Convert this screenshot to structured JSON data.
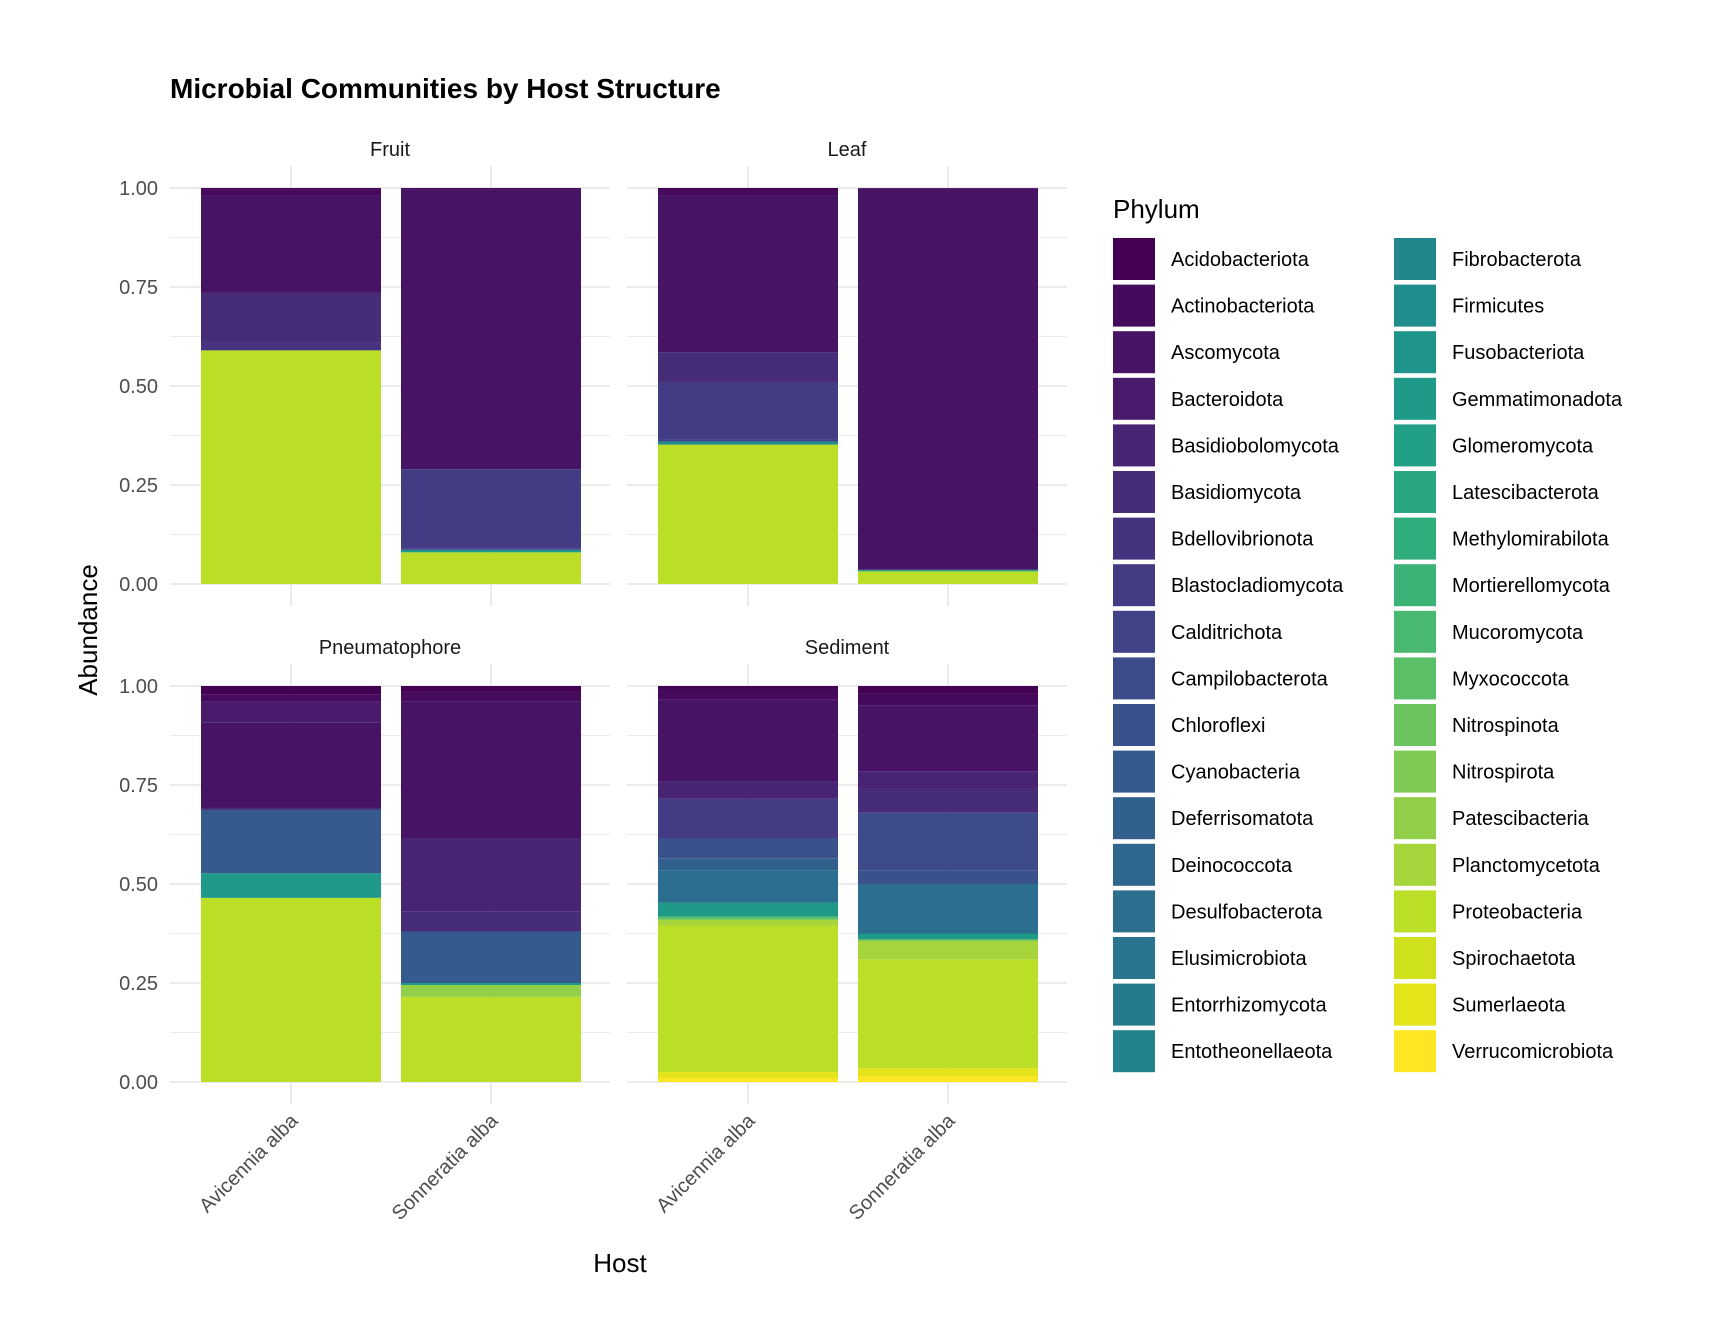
{
  "chart_data": {
    "type": "bar",
    "stacked": true,
    "title": "Microbial Communities by Host Structure",
    "xlabel": "Host",
    "ylabel": "Abundance",
    "ylim": [
      0,
      1
    ],
    "yticks": [
      "0.00",
      "0.25",
      "0.50",
      "0.75",
      "1.00"
    ],
    "categories": [
      "Avicennia alba",
      "Sonneratia alba"
    ],
    "legend": {
      "title": "Phylum",
      "position": "right",
      "items": [
        {
          "name": "Acidobacteriota",
          "color": "#440154"
        },
        {
          "name": "Actinobacteriota",
          "color": "#450a5c"
        },
        {
          "name": "Ascomycota",
          "color": "#471465"
        },
        {
          "name": "Bacteroidota",
          "color": "#481b6d"
        },
        {
          "name": "Basidiobolomycota",
          "color": "#482475"
        },
        {
          "name": "Basidiomycota",
          "color": "#472c7a"
        },
        {
          "name": "Bdellovibrionota",
          "color": "#45337f"
        },
        {
          "name": "Blastocladiomycota",
          "color": "#433b84"
        },
        {
          "name": "Calditrichota",
          "color": "#404387"
        },
        {
          "name": "Campilobacterota",
          "color": "#3d4b8a"
        },
        {
          "name": "Chloroflexi",
          "color": "#39528c"
        },
        {
          "name": "Cyanobacteria",
          "color": "#355a8d"
        },
        {
          "name": "Deferrisomatota",
          "color": "#31608d"
        },
        {
          "name": "Deinococcota",
          "color": "#2e678e"
        },
        {
          "name": "Desulfobacterota",
          "color": "#2b6e8e"
        },
        {
          "name": "Elusimicrobiota",
          "color": "#29748e"
        },
        {
          "name": "Entorrhizomycota",
          "color": "#267a8e"
        },
        {
          "name": "Entotheonellaeota",
          "color": "#24818e"
        },
        {
          "name": "Fibrobacterota",
          "color": "#21878d"
        },
        {
          "name": "Firmicutes",
          "color": "#1f8d8c"
        },
        {
          "name": "Fusobacteriota",
          "color": "#1e948a"
        },
        {
          "name": "Gemmatimonadota",
          "color": "#1f9a88"
        },
        {
          "name": "Glomeromycota",
          "color": "#22a085"
        },
        {
          "name": "Latescibacterota",
          "color": "#28a781"
        },
        {
          "name": "Methylomirabilota",
          "color": "#30ad7c"
        },
        {
          "name": "Mortierellomycota",
          "color": "#3cb376"
        },
        {
          "name": "Mucoromycota",
          "color": "#4ab970"
        },
        {
          "name": "Myxococcota",
          "color": "#5abf67"
        },
        {
          "name": "Nitrospinota",
          "color": "#6bc45e"
        },
        {
          "name": "Nitrospirota",
          "color": "#7eca54"
        },
        {
          "name": "Patescibacteria",
          "color": "#92cf48"
        },
        {
          "name": "Planctomycetota",
          "color": "#a6d43b"
        },
        {
          "name": "Proteobacteria",
          "color": "#bbdf27"
        },
        {
          "name": "Spirochaetota",
          "color": "#cfe11c"
        },
        {
          "name": "Sumerlaeota",
          "color": "#e4e41a"
        },
        {
          "name": "Verrucomicrobiota",
          "color": "#fde725"
        }
      ]
    },
    "panels": [
      {
        "facet": "Fruit",
        "bars": [
          {
            "host": "Avicennia alba",
            "segments": [
              {
                "phylum": "Proteobacteria",
                "value": 0.59
              },
              {
                "phylum": "Bdellovibrionota",
                "value": 0.02
              },
              {
                "phylum": "Basidiomycota",
                "value": 0.125
              },
              {
                "phylum": "Ascomycota",
                "value": 0.245
              },
              {
                "phylum": "Actinobacteriota",
                "value": 0.016
              },
              {
                "phylum": "Acidobacteriota",
                "value": 0.004
              }
            ]
          },
          {
            "host": "Sonneratia alba",
            "segments": [
              {
                "phylum": "Proteobacteria",
                "value": 0.08
              },
              {
                "phylum": "Gemmatimonadota",
                "value": 0.006
              },
              {
                "phylum": "Calditrichota",
                "value": 0.004
              },
              {
                "phylum": "Blastocladiomycota",
                "value": 0.2
              },
              {
                "phylum": "Ascomycota",
                "value": 0.706
              },
              {
                "phylum": "Actinobacteriota",
                "value": 0.004
              }
            ]
          }
        ]
      },
      {
        "facet": "Leaf",
        "bars": [
          {
            "host": "Avicennia alba",
            "segments": [
              {
                "phylum": "Proteobacteria",
                "value": 0.352
              },
              {
                "phylum": "Firmicutes",
                "value": 0.008
              },
              {
                "phylum": "Calditrichota",
                "value": 0.006
              },
              {
                "phylum": "Blastocladiomycota",
                "value": 0.144
              },
              {
                "phylum": "Basidiomycota",
                "value": 0.075
              },
              {
                "phylum": "Ascomycota",
                "value": 0.395
              },
              {
                "phylum": "Actinobacteriota",
                "value": 0.015
              },
              {
                "phylum": "Acidobacteriota",
                "value": 0.005
              }
            ]
          },
          {
            "host": "Sonneratia alba",
            "segments": [
              {
                "phylum": "Proteobacteria",
                "value": 0.032
              },
              {
                "phylum": "Gemmatimonadota",
                "value": 0.004
              },
              {
                "phylum": "Ascomycota",
                "value": 0.962
              },
              {
                "phylum": "Actinobacteriota",
                "value": 0.002
              }
            ]
          }
        ]
      },
      {
        "facet": "Pneumatophore",
        "bars": [
          {
            "host": "Avicennia alba",
            "segments": [
              {
                "phylum": "Proteobacteria",
                "value": 0.465
              },
              {
                "phylum": "Gemmatimonadota",
                "value": 0.062
              },
              {
                "phylum": "Cyanobacteria",
                "value": 0.16
              },
              {
                "phylum": "Basidiomycota",
                "value": 0.005
              },
              {
                "phylum": "Ascomycota",
                "value": 0.215
              },
              {
                "phylum": "Bacteroidota",
                "value": 0.053
              },
              {
                "phylum": "Actinobacteriota",
                "value": 0.018
              },
              {
                "phylum": "Acidobacteriota",
                "value": 0.022
              }
            ]
          },
          {
            "host": "Sonneratia alba",
            "segments": [
              {
                "phylum": "Proteobacteria",
                "value": 0.215
              },
              {
                "phylum": "Patescibacteria",
                "value": 0.03
              },
              {
                "phylum": "Gemmatimonadota",
                "value": 0.005
              },
              {
                "phylum": "Cyanobacteria",
                "value": 0.13
              },
              {
                "phylum": "Basidiomycota",
                "value": 0.05
              },
              {
                "phylum": "Basidiobolomycota",
                "value": 0.185
              },
              {
                "phylum": "Ascomycota",
                "value": 0.345
              },
              {
                "phylum": "Actinobacteriota",
                "value": 0.025
              },
              {
                "phylum": "Acidobacteriota",
                "value": 0.015
              }
            ]
          }
        ]
      },
      {
        "facet": "Sediment",
        "bars": [
          {
            "host": "Avicennia alba",
            "segments": [
              {
                "phylum": "Verrucomicrobiota",
                "value": 0.01
              },
              {
                "phylum": "Sumerlaeota",
                "value": 0.015
              },
              {
                "phylum": "Proteobacteria",
                "value": 0.37
              },
              {
                "phylum": "Planctomycetota",
                "value": 0.015
              },
              {
                "phylum": "Myxococcota",
                "value": 0.008
              },
              {
                "phylum": "Gemmatimonadota",
                "value": 0.035
              },
              {
                "phylum": "Desulfobacterota",
                "value": 0.082
              },
              {
                "phylum": "Deferrisomatota",
                "value": 0.03
              },
              {
                "phylum": "Chloroflexi",
                "value": 0.05
              },
              {
                "phylum": "Blastocladiomycota",
                "value": 0.1
              },
              {
                "phylum": "Basidiobolomycota",
                "value": 0.045
              },
              {
                "phylum": "Ascomycota",
                "value": 0.205
              },
              {
                "phylum": "Actinobacteriota",
                "value": 0.025
              },
              {
                "phylum": "Acidobacteriota",
                "value": 0.01
              }
            ]
          },
          {
            "host": "Sonneratia alba",
            "segments": [
              {
                "phylum": "Verrucomicrobiota",
                "value": 0.015
              },
              {
                "phylum": "Sumerlaeota",
                "value": 0.02
              },
              {
                "phylum": "Proteobacteria",
                "value": 0.275
              },
              {
                "phylum": "Planctomycetota",
                "value": 0.045
              },
              {
                "phylum": "Nitrospirota",
                "value": 0.005
              },
              {
                "phylum": "Gemmatimonadota",
                "value": 0.015
              },
              {
                "phylum": "Desulfobacterota",
                "value": 0.125
              },
              {
                "phylum": "Chloroflexi",
                "value": 0.035
              },
              {
                "phylum": "Campilobacterota",
                "value": 0.145
              },
              {
                "phylum": "Basidiomycota",
                "value": 0.06
              },
              {
                "phylum": "Basidiobolomycota",
                "value": 0.045
              },
              {
                "phylum": "Ascomycota",
                "value": 0.165
              },
              {
                "phylum": "Actinobacteriota",
                "value": 0.03
              },
              {
                "phylum": "Acidobacteriota",
                "value": 0.02
              }
            ]
          }
        ]
      }
    ]
  }
}
